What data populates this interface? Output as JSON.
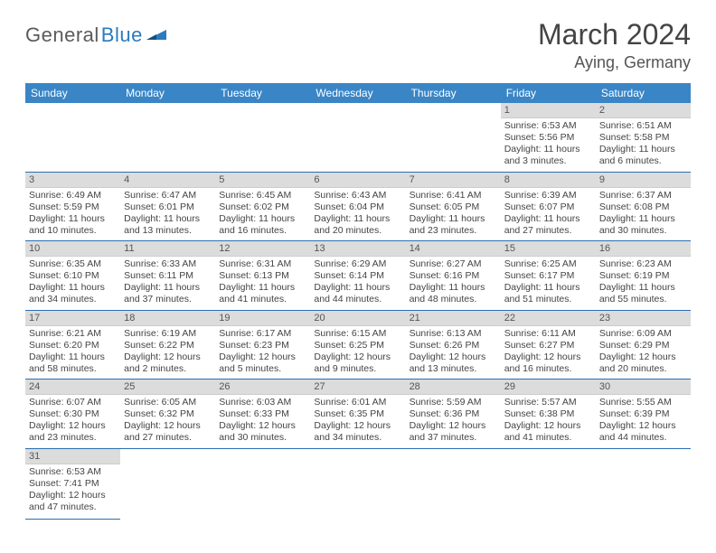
{
  "logo": {
    "text1": "General",
    "text2": "Blue"
  },
  "title": "March 2024",
  "location": "Aying, Germany",
  "colors": {
    "header_bg": "#3a85c6",
    "header_text": "#ffffff",
    "daynum_bg": "#dcdcdc",
    "row_border": "#2b6fb0",
    "logo_gray": "#5a5a5a",
    "logo_blue": "#2b7bbf"
  },
  "weekdays": [
    "Sunday",
    "Monday",
    "Tuesday",
    "Wednesday",
    "Thursday",
    "Friday",
    "Saturday"
  ],
  "weeks": [
    [
      null,
      null,
      null,
      null,
      null,
      {
        "n": "1",
        "sr": "Sunrise: 6:53 AM",
        "ss": "Sunset: 5:56 PM",
        "dl": "Daylight: 11 hours and 3 minutes."
      },
      {
        "n": "2",
        "sr": "Sunrise: 6:51 AM",
        "ss": "Sunset: 5:58 PM",
        "dl": "Daylight: 11 hours and 6 minutes."
      }
    ],
    [
      {
        "n": "3",
        "sr": "Sunrise: 6:49 AM",
        "ss": "Sunset: 5:59 PM",
        "dl": "Daylight: 11 hours and 10 minutes."
      },
      {
        "n": "4",
        "sr": "Sunrise: 6:47 AM",
        "ss": "Sunset: 6:01 PM",
        "dl": "Daylight: 11 hours and 13 minutes."
      },
      {
        "n": "5",
        "sr": "Sunrise: 6:45 AM",
        "ss": "Sunset: 6:02 PM",
        "dl": "Daylight: 11 hours and 16 minutes."
      },
      {
        "n": "6",
        "sr": "Sunrise: 6:43 AM",
        "ss": "Sunset: 6:04 PM",
        "dl": "Daylight: 11 hours and 20 minutes."
      },
      {
        "n": "7",
        "sr": "Sunrise: 6:41 AM",
        "ss": "Sunset: 6:05 PM",
        "dl": "Daylight: 11 hours and 23 minutes."
      },
      {
        "n": "8",
        "sr": "Sunrise: 6:39 AM",
        "ss": "Sunset: 6:07 PM",
        "dl": "Daylight: 11 hours and 27 minutes."
      },
      {
        "n": "9",
        "sr": "Sunrise: 6:37 AM",
        "ss": "Sunset: 6:08 PM",
        "dl": "Daylight: 11 hours and 30 minutes."
      }
    ],
    [
      {
        "n": "10",
        "sr": "Sunrise: 6:35 AM",
        "ss": "Sunset: 6:10 PM",
        "dl": "Daylight: 11 hours and 34 minutes."
      },
      {
        "n": "11",
        "sr": "Sunrise: 6:33 AM",
        "ss": "Sunset: 6:11 PM",
        "dl": "Daylight: 11 hours and 37 minutes."
      },
      {
        "n": "12",
        "sr": "Sunrise: 6:31 AM",
        "ss": "Sunset: 6:13 PM",
        "dl": "Daylight: 11 hours and 41 minutes."
      },
      {
        "n": "13",
        "sr": "Sunrise: 6:29 AM",
        "ss": "Sunset: 6:14 PM",
        "dl": "Daylight: 11 hours and 44 minutes."
      },
      {
        "n": "14",
        "sr": "Sunrise: 6:27 AM",
        "ss": "Sunset: 6:16 PM",
        "dl": "Daylight: 11 hours and 48 minutes."
      },
      {
        "n": "15",
        "sr": "Sunrise: 6:25 AM",
        "ss": "Sunset: 6:17 PM",
        "dl": "Daylight: 11 hours and 51 minutes."
      },
      {
        "n": "16",
        "sr": "Sunrise: 6:23 AM",
        "ss": "Sunset: 6:19 PM",
        "dl": "Daylight: 11 hours and 55 minutes."
      }
    ],
    [
      {
        "n": "17",
        "sr": "Sunrise: 6:21 AM",
        "ss": "Sunset: 6:20 PM",
        "dl": "Daylight: 11 hours and 58 minutes."
      },
      {
        "n": "18",
        "sr": "Sunrise: 6:19 AM",
        "ss": "Sunset: 6:22 PM",
        "dl": "Daylight: 12 hours and 2 minutes."
      },
      {
        "n": "19",
        "sr": "Sunrise: 6:17 AM",
        "ss": "Sunset: 6:23 PM",
        "dl": "Daylight: 12 hours and 5 minutes."
      },
      {
        "n": "20",
        "sr": "Sunrise: 6:15 AM",
        "ss": "Sunset: 6:25 PM",
        "dl": "Daylight: 12 hours and 9 minutes."
      },
      {
        "n": "21",
        "sr": "Sunrise: 6:13 AM",
        "ss": "Sunset: 6:26 PM",
        "dl": "Daylight: 12 hours and 13 minutes."
      },
      {
        "n": "22",
        "sr": "Sunrise: 6:11 AM",
        "ss": "Sunset: 6:27 PM",
        "dl": "Daylight: 12 hours and 16 minutes."
      },
      {
        "n": "23",
        "sr": "Sunrise: 6:09 AM",
        "ss": "Sunset: 6:29 PM",
        "dl": "Daylight: 12 hours and 20 minutes."
      }
    ],
    [
      {
        "n": "24",
        "sr": "Sunrise: 6:07 AM",
        "ss": "Sunset: 6:30 PM",
        "dl": "Daylight: 12 hours and 23 minutes."
      },
      {
        "n": "25",
        "sr": "Sunrise: 6:05 AM",
        "ss": "Sunset: 6:32 PM",
        "dl": "Daylight: 12 hours and 27 minutes."
      },
      {
        "n": "26",
        "sr": "Sunrise: 6:03 AM",
        "ss": "Sunset: 6:33 PM",
        "dl": "Daylight: 12 hours and 30 minutes."
      },
      {
        "n": "27",
        "sr": "Sunrise: 6:01 AM",
        "ss": "Sunset: 6:35 PM",
        "dl": "Daylight: 12 hours and 34 minutes."
      },
      {
        "n": "28",
        "sr": "Sunrise: 5:59 AM",
        "ss": "Sunset: 6:36 PM",
        "dl": "Daylight: 12 hours and 37 minutes."
      },
      {
        "n": "29",
        "sr": "Sunrise: 5:57 AM",
        "ss": "Sunset: 6:38 PM",
        "dl": "Daylight: 12 hours and 41 minutes."
      },
      {
        "n": "30",
        "sr": "Sunrise: 5:55 AM",
        "ss": "Sunset: 6:39 PM",
        "dl": "Daylight: 12 hours and 44 minutes."
      }
    ],
    [
      {
        "n": "31",
        "sr": "Sunrise: 6:53 AM",
        "ss": "Sunset: 7:41 PM",
        "dl": "Daylight: 12 hours and 47 minutes."
      },
      null,
      null,
      null,
      null,
      null,
      null
    ]
  ]
}
